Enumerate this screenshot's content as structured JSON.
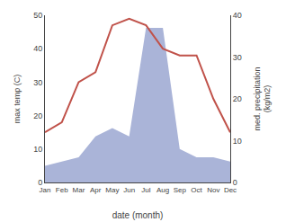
{
  "chart_data": {
    "type": "line",
    "categories": [
      "Jan",
      "Feb",
      "Mar",
      "Apr",
      "May",
      "Jun",
      "Jul",
      "Aug",
      "Sep",
      "Oct",
      "Nov",
      "Dec"
    ],
    "xlabel": "date (month)",
    "ylabel": "max temp (C)",
    "y2label": "med. precipitation\n(kg/m2)",
    "series": [
      {
        "type": "area",
        "axis": "y2",
        "color": "#aab4d8",
        "values": [
          4,
          5,
          6,
          11,
          13,
          11,
          37,
          37,
          8,
          6,
          6,
          5
        ]
      },
      {
        "type": "line",
        "color": "#c0524a",
        "values": [
          15,
          18,
          30,
          33,
          47,
          49,
          47,
          40,
          38,
          38,
          25,
          15
        ]
      }
    ],
    "ylim": [
      0,
      50
    ],
    "yticks": [
      0,
      10,
      20,
      30,
      40,
      50
    ],
    "y2lim": [
      0,
      40
    ],
    "y2ticks": [
      0,
      10,
      20,
      30,
      40
    ],
    "grid": false
  }
}
